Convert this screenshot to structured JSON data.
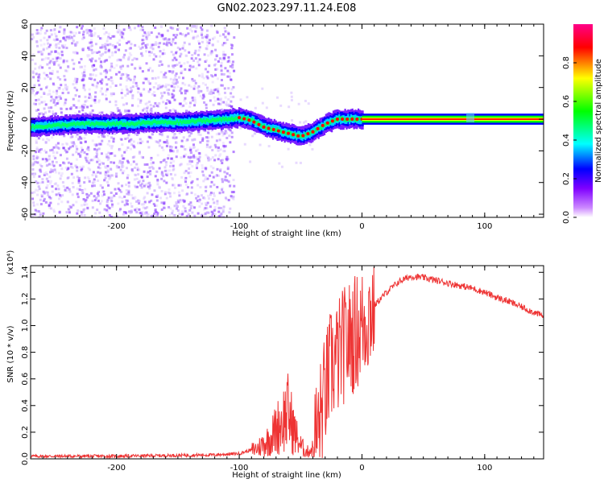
{
  "title": "GN02.2023.297.11.24.E08",
  "chart_data": [
    {
      "type": "heatmap",
      "xlabel": "Height of straight line (km)",
      "ylabel": "Frequency (Hz)",
      "xlim": [
        -270,
        148
      ],
      "ylim": [
        -62,
        60
      ],
      "xticks": [
        -200,
        -100,
        0,
        100
      ],
      "yticks": [
        -60,
        -40,
        -20,
        0,
        20,
        40,
        60
      ],
      "colorbar": {
        "label": "Normalized spectral amplitude",
        "range": [
          0.0,
          1.0
        ],
        "ticks": [
          "0.0",
          "0.2",
          "0.4",
          "0.6",
          "0.8"
        ],
        "colors": [
          "#ffffff",
          "#9b59ff",
          "#0000ff",
          "#00ffff",
          "#00ff00",
          "#ffff00",
          "#ff0000",
          "#ff0088"
        ]
      },
      "ridge": {
        "x": [
          -270,
          -250,
          -230,
          -210,
          -190,
          -170,
          -150,
          -130,
          -110,
          -100,
          -90,
          -80,
          -70,
          -60,
          -50,
          -40,
          -30,
          -20,
          -10,
          0,
          148
        ],
        "freq": [
          -5,
          -4,
          -3,
          -3,
          -3,
          -2,
          -2,
          -1,
          0,
          1,
          -1,
          -5,
          -7,
          -9,
          -11,
          -8,
          -3,
          0,
          0,
          0,
          0
        ]
      },
      "noise_region_x": [
        -270,
        -105
      ]
    },
    {
      "type": "line",
      "xlabel": "Height of straight line (km)",
      "ylabel": "SNR (10 * v/v)",
      "yscale_label": "(x10⁴)",
      "xlim": [
        -270,
        148
      ],
      "ylim": [
        0,
        1.45
      ],
      "xticks": [
        -200,
        -100,
        0,
        100
      ],
      "yticks": [
        "0.0",
        "0.2",
        "0.4",
        "0.6",
        "0.8",
        "1.0",
        "1.2",
        "1.4"
      ],
      "color": "#ee3333",
      "series": [
        {
          "x": [
            -270,
            -200,
            -120,
            -100,
            -85,
            -75,
            -68,
            -60,
            -55,
            -50,
            -45,
            -40,
            -35,
            -30,
            -25,
            -20,
            -15,
            -10,
            -5,
            0,
            10,
            20,
            30,
            40,
            50,
            60,
            70,
            80,
            90,
            100,
            110,
            120,
            130,
            140,
            148
          ],
          "values": [
            0.02,
            0.02,
            0.03,
            0.04,
            0.08,
            0.15,
            0.25,
            0.35,
            0.2,
            0.1,
            0.05,
            0.08,
            0.25,
            0.5,
            0.7,
            0.75,
            0.85,
            0.9,
            0.95,
            1.0,
            1.15,
            1.25,
            1.33,
            1.37,
            1.36,
            1.34,
            1.32,
            1.3,
            1.28,
            1.25,
            1.21,
            1.18,
            1.14,
            1.1,
            1.07
          ]
        }
      ]
    }
  ]
}
